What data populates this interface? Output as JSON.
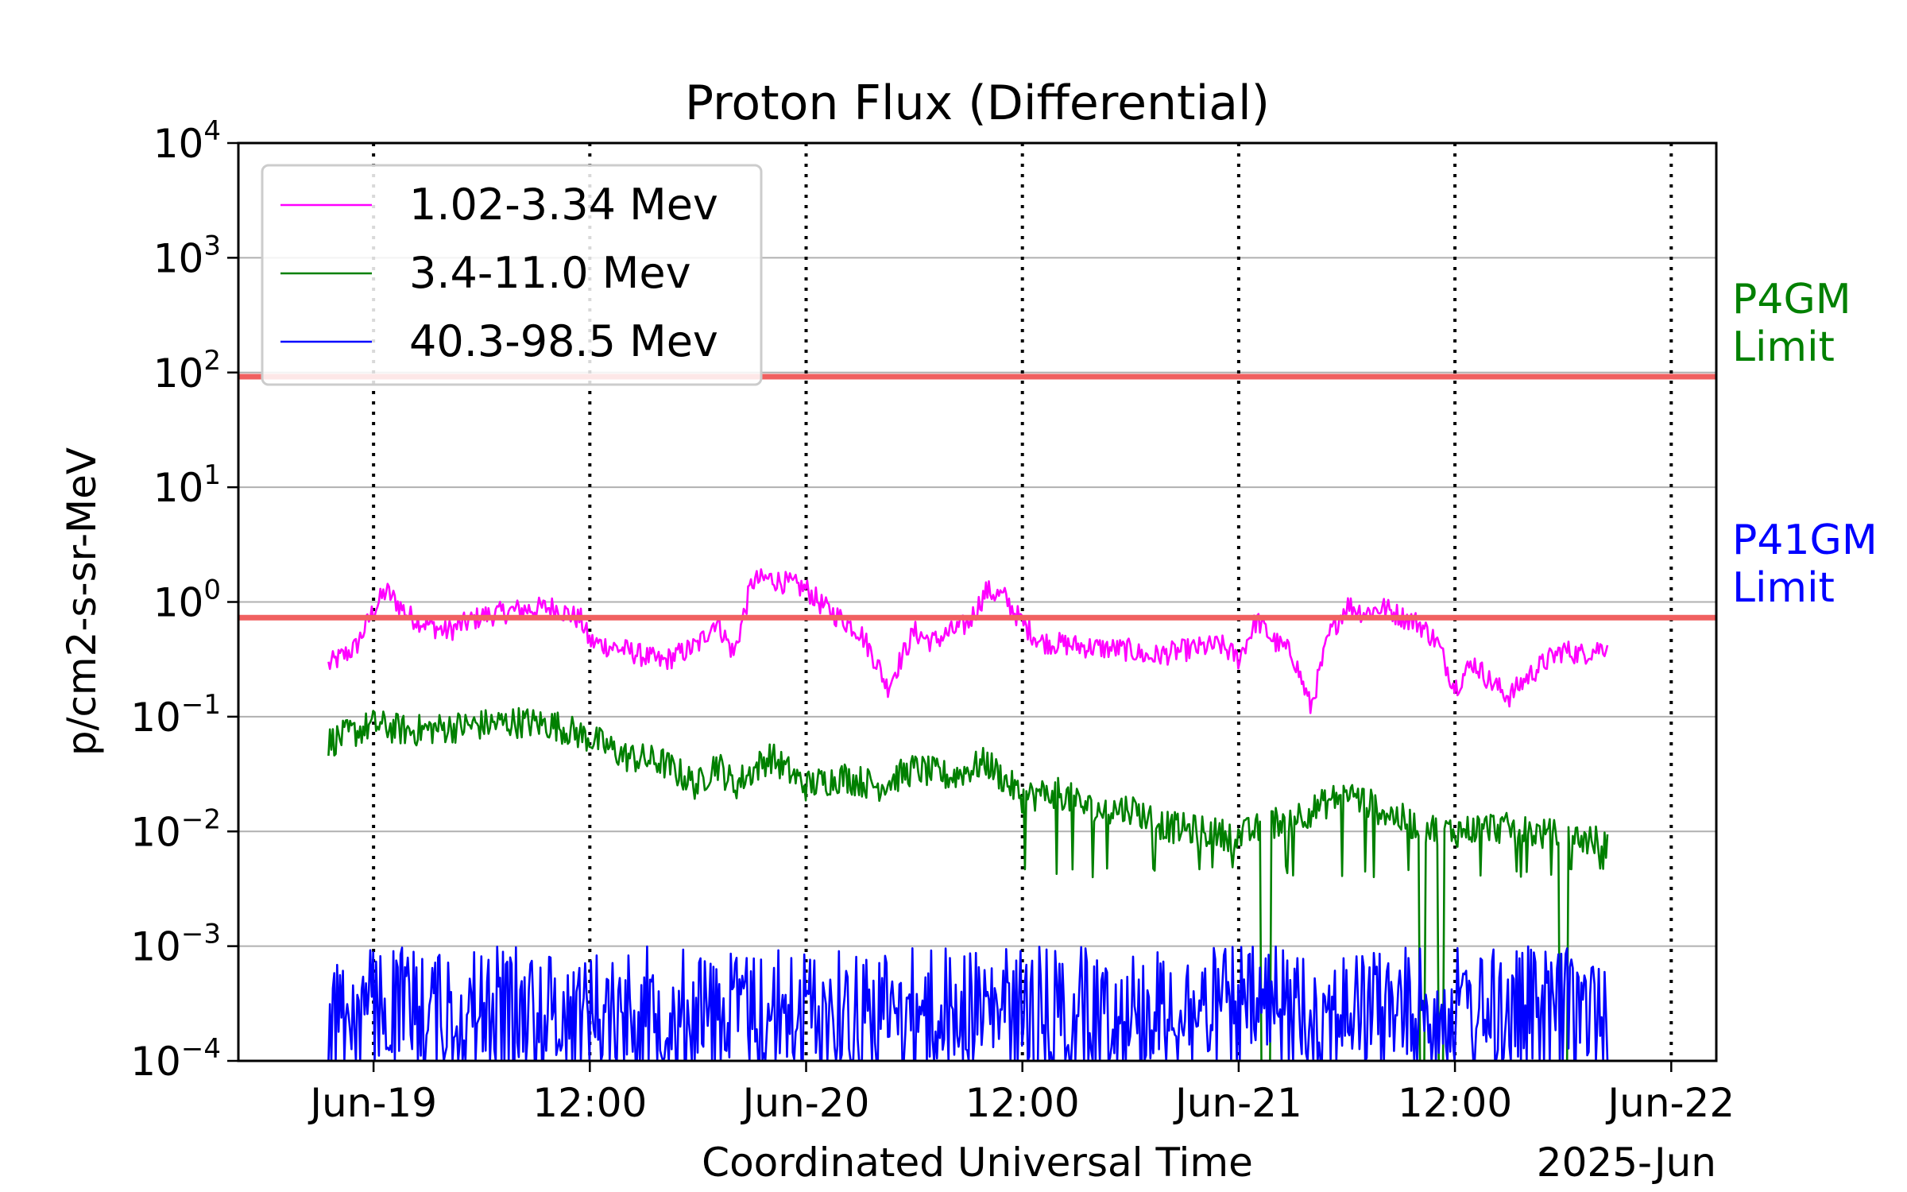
{
  "chart_data": {
    "type": "line",
    "title": "Proton Flux (Differential)",
    "xlabel": "Coordinated Universal Time",
    "ylabel": "p/cm2-s-sr-MeV",
    "x_unit": "hours since 2025-Jun-19 00:00 UTC",
    "xlim": [
      -7.5,
      74.5
    ],
    "x_data_range": [
      -2.5,
      68.5
    ],
    "x_ticks": [
      {
        "x": 0,
        "label": "Jun-19"
      },
      {
        "x": 12,
        "label": "12:00"
      },
      {
        "x": 24,
        "label": "Jun-20"
      },
      {
        "x": 36,
        "label": "12:00"
      },
      {
        "x": 48,
        "label": "Jun-21"
      },
      {
        "x": 60,
        "label": "12:00"
      },
      {
        "x": 72,
        "label": "Jun-22"
      }
    ],
    "x_year_label": "2025-Jun",
    "yscale": "log",
    "ylim": [
      0.0001,
      10000
    ],
    "y_ticks": [
      {
        "exp": 4,
        "label": "10",
        "sup": "4"
      },
      {
        "exp": 3,
        "label": "10",
        "sup": "3"
      },
      {
        "exp": 2,
        "label": "10",
        "sup": "2"
      },
      {
        "exp": 1,
        "label": "10",
        "sup": "1"
      },
      {
        "exp": 0,
        "label": "10",
        "sup": "0"
      },
      {
        "exp": -1,
        "label": "10",
        "sup": "−1"
      },
      {
        "exp": -2,
        "label": "10",
        "sup": "−2"
      },
      {
        "exp": -3,
        "label": "10",
        "sup": "−3"
      },
      {
        "exp": -4,
        "label": "10",
        "sup": "−4"
      }
    ],
    "grid": "horizontal at each decade; dotted vertical lines at day and midday ticks",
    "legend_position": "top-left",
    "series": [
      {
        "name": "1.02-3.34 Mev",
        "color": "#ff00ff",
        "x": [
          -2.5,
          -1,
          0,
          0.7,
          2,
          4,
          6,
          8,
          10,
          11.5,
          12,
          14,
          16,
          18,
          19,
          20,
          21,
          22,
          24,
          25,
          27,
          28,
          28.5,
          30,
          31,
          33,
          34,
          35,
          36,
          37,
          40,
          42,
          43,
          45,
          47,
          48,
          49,
          50,
          51,
          52,
          53,
          54,
          55,
          56,
          57,
          58,
          59,
          60,
          61,
          62,
          63,
          64,
          65,
          66,
          67,
          68.5
        ],
        "values": [
          0.28,
          0.4,
          0.85,
          1.25,
          0.75,
          0.55,
          0.75,
          0.85,
          0.9,
          0.7,
          0.45,
          0.38,
          0.3,
          0.42,
          0.7,
          0.35,
          1.5,
          1.6,
          1.3,
          0.9,
          0.55,
          0.28,
          0.18,
          0.55,
          0.45,
          0.65,
          1.25,
          1.1,
          0.65,
          0.45,
          0.4,
          0.38,
          0.33,
          0.38,
          0.42,
          0.32,
          0.7,
          0.45,
          0.35,
          0.12,
          0.5,
          0.95,
          0.8,
          0.9,
          0.75,
          0.65,
          0.45,
          0.18,
          0.3,
          0.2,
          0.15,
          0.22,
          0.3,
          0.38,
          0.35,
          0.42
        ]
      },
      {
        "name": "3.4-11.0 Mev",
        "color": "#008000",
        "x": [
          -2.5,
          0,
          2,
          4,
          6,
          8,
          10,
          12,
          14,
          16,
          18,
          19,
          20,
          22,
          24,
          26,
          28,
          30,
          32,
          34,
          36,
          38,
          40,
          42,
          44,
          46,
          48,
          50,
          52,
          54,
          56,
          58,
          60,
          62,
          64,
          66,
          68.5
        ],
        "values": [
          0.06,
          0.085,
          0.075,
          0.08,
          0.085,
          0.09,
          0.085,
          0.065,
          0.045,
          0.04,
          0.025,
          0.04,
          0.025,
          0.045,
          0.025,
          0.03,
          0.025,
          0.035,
          0.03,
          0.04,
          0.02,
          0.022,
          0.015,
          0.016,
          0.011,
          0.01,
          0.009,
          0.012,
          0.015,
          0.022,
          0.015,
          0.011,
          0.01,
          0.011,
          0.01,
          0.009,
          0.008
        ]
      },
      {
        "name": "40.3-98.5 Mev",
        "color": "#0000ff",
        "x": [
          -2.5,
          68.5
        ],
        "values": [
          0.0004,
          0.0004
        ]
      }
    ],
    "reference_lines": [
      {
        "name": "P4GM limit",
        "y": 92,
        "color": "#f06060"
      },
      {
        "name": "P41GM limit",
        "y": 0.73,
        "color": "#f06060"
      }
    ],
    "annotations": [
      {
        "text": [
          "P4GM",
          "Limit"
        ],
        "color": "#008000"
      },
      {
        "text": [
          "P41GM",
          "Limit"
        ],
        "color": "#0000ff"
      }
    ]
  }
}
